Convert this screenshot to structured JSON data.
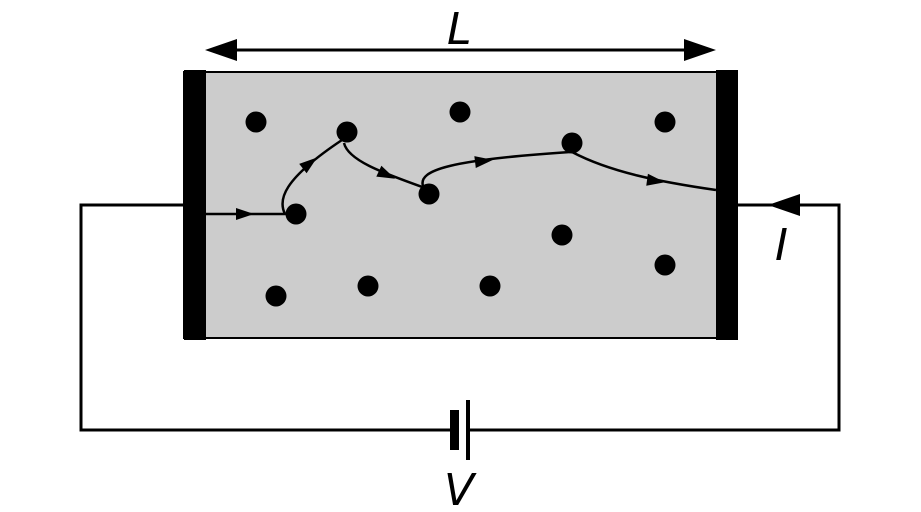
{
  "labels": {
    "length": "L",
    "current": "I",
    "voltage": "V"
  },
  "colors": {
    "conductor": "#cccccc",
    "ink": "#000000"
  }
}
